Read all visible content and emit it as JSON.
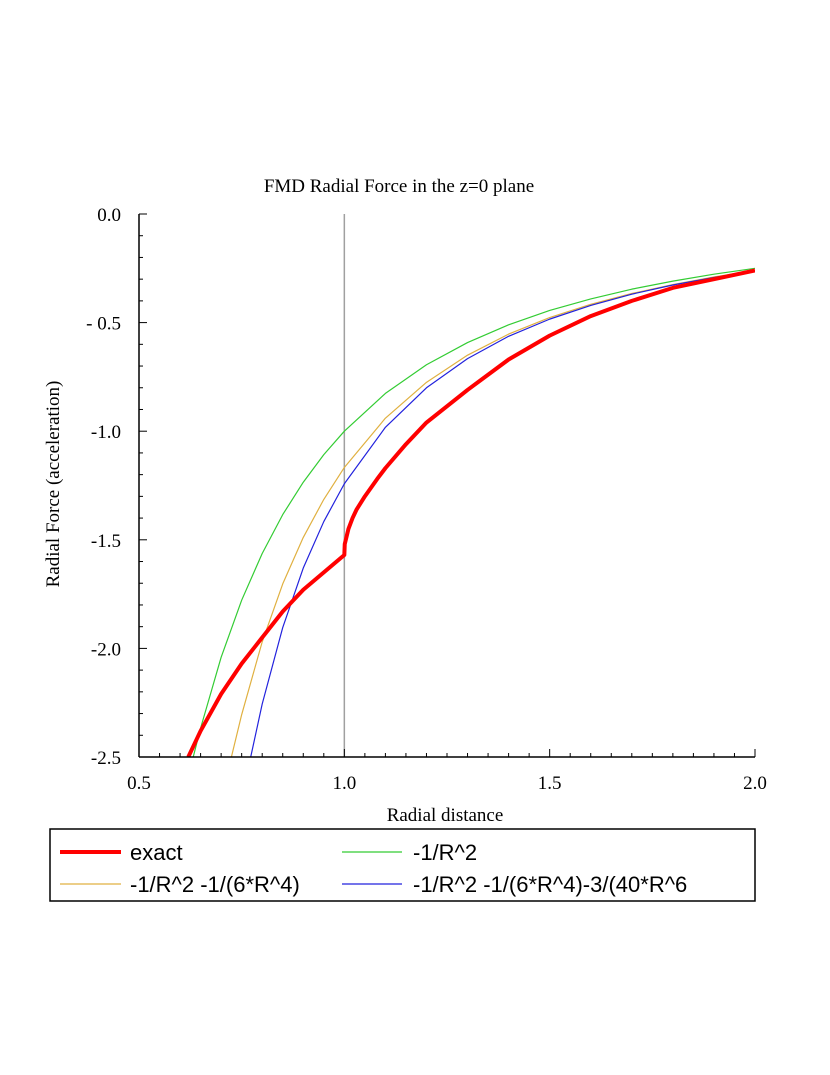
{
  "chart_data": {
    "type": "line",
    "title": "FMD Radial Force in the z=0 plane",
    "xlabel": "Radial distance",
    "ylabel": "Radial Force (acceleration)",
    "xlim": [
      0.5,
      2.0
    ],
    "ylim": [
      -2.5,
      0.0
    ],
    "x_ticks": [
      "0.5",
      "1.0",
      "1.5",
      "2.0"
    ],
    "y_ticks": [
      "0.0",
      "- 0.5",
      "-1.0",
      "-1.5",
      "-2.0",
      "-2.5"
    ],
    "grid": false,
    "vline": {
      "x": 1.0,
      "color": "#a0a0a0"
    },
    "legend_position": "bottom",
    "series": [
      {
        "name": "exact",
        "color": "#ff0000",
        "x": [
          0.62,
          0.65,
          0.7,
          0.75,
          0.8,
          0.85,
          0.9,
          0.95,
          1.0,
          1.001,
          1.01,
          1.02,
          1.03,
          1.05,
          1.08,
          1.1,
          1.15,
          1.2,
          1.3,
          1.4,
          1.5,
          1.6,
          1.7,
          1.8,
          1.9,
          2.0
        ],
        "values": [
          -2.5,
          -2.38,
          -2.21,
          -2.07,
          -1.95,
          -1.83,
          -1.73,
          -1.65,
          -1.57,
          -1.52,
          -1.45,
          -1.4,
          -1.36,
          -1.3,
          -1.22,
          -1.17,
          -1.06,
          -0.96,
          -0.81,
          -0.67,
          -0.56,
          -0.47,
          -0.4,
          -0.34,
          -0.3,
          -0.26
        ]
      },
      {
        "name": "-1/R^2",
        "color": "#33cc33",
        "x": [
          0.632,
          0.65,
          0.7,
          0.75,
          0.8,
          0.85,
          0.9,
          0.95,
          1.0,
          1.1,
          1.2,
          1.3,
          1.4,
          1.5,
          1.6,
          1.7,
          1.8,
          1.9,
          2.0
        ],
        "values": [
          -2.5,
          -2.367,
          -2.041,
          -1.778,
          -1.563,
          -1.384,
          -1.235,
          -1.108,
          -1.0,
          -0.826,
          -0.694,
          -0.592,
          -0.51,
          -0.444,
          -0.391,
          -0.346,
          -0.309,
          -0.277,
          -0.25
        ]
      },
      {
        "name": "-1/R^2 -1/(6*R^4)",
        "color": "#e0b040",
        "x": [
          0.725,
          0.75,
          0.8,
          0.85,
          0.9,
          0.95,
          1.0,
          1.1,
          1.2,
          1.3,
          1.4,
          1.5,
          1.6,
          1.7,
          1.8,
          1.9,
          2.0
        ],
        "values": [
          -2.5,
          -2.305,
          -1.97,
          -1.703,
          -1.489,
          -1.314,
          -1.167,
          -0.94,
          -0.775,
          -0.65,
          -0.553,
          -0.477,
          -0.416,
          -0.366,
          -0.325,
          -0.29,
          -0.26
        ]
      },
      {
        "name": "-1/R^2 -1/(6*R^4)-3/(40*R^6",
        "color": "#2222dd",
        "x": [
          0.772,
          0.8,
          0.85,
          0.9,
          0.95,
          1.0,
          1.1,
          1.2,
          1.3,
          1.4,
          1.5,
          1.6,
          1.7,
          1.8,
          1.9,
          2.0
        ],
        "values": [
          -2.5,
          -2.256,
          -1.904,
          -1.63,
          -1.416,
          -1.242,
          -0.982,
          -0.8,
          -0.666,
          -0.563,
          -0.484,
          -0.421,
          -0.369,
          -0.327,
          -0.292,
          -0.261
        ]
      }
    ]
  }
}
